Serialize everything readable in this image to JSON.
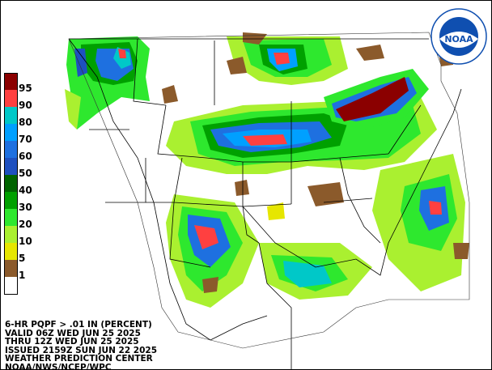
{
  "product": {
    "line1": "6-HR PQPF > .01 IN (PERCENT)",
    "line2": "VALID 06Z WED JUN 25 2025",
    "line3": "THRU 12Z WED JUN 25 2025",
    "line4": "ISSUED 2159Z SUN JUN 22 2025",
    "line5": "WEATHER PREDICTION CENTER",
    "line6": "NOAA/NWS/NCEP/WPC"
  },
  "legend": [
    {
      "label": "95",
      "color": "#8b0000"
    },
    {
      "label": "90",
      "color": "#ff4040"
    },
    {
      "label": "80",
      "color": "#00c8c8"
    },
    {
      "label": "70",
      "color": "#00a0ff"
    },
    {
      "label": "60",
      "color": "#1e70e0"
    },
    {
      "label": "50",
      "color": "#1e50c0"
    },
    {
      "label": "40",
      "color": "#006400"
    },
    {
      "label": "30",
      "color": "#00a000"
    },
    {
      "label": "20",
      "color": "#2ee82e"
    },
    {
      "label": "10",
      "color": "#aaf030"
    },
    {
      "label": "5",
      "color": "#e6e600"
    },
    {
      "label": "1",
      "color": "#8b5a2b"
    },
    {
      "label": "",
      "color": "#ffffff"
    }
  ],
  "logo": {
    "text": "NOAA",
    "ring_text": "NATIONAL OCEANIC AND ATMOSPHERIC ADMINISTRATION",
    "color": "#0f4fb0"
  }
}
